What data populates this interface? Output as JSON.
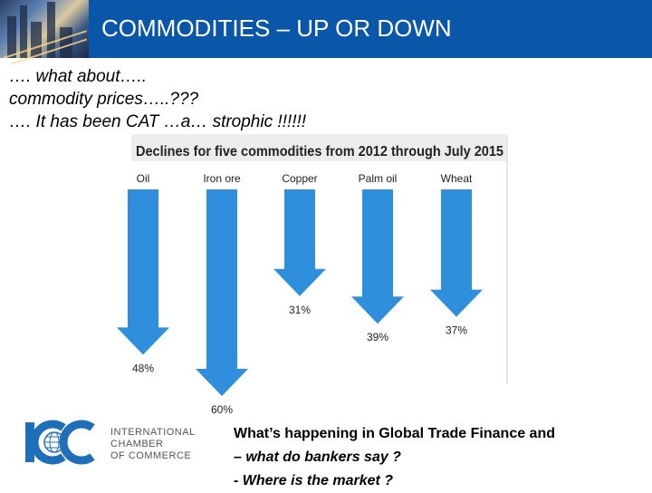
{
  "header": {
    "title": "COMMODITIES – UP OR DOWN"
  },
  "intro": {
    "lines": [
      "…. what about…..",
      " commodity prices…..???",
      "…. It has been  CAT …a… strophic !!!!!!"
    ]
  },
  "chart_data": {
    "type": "bar",
    "title": "Declines for five commodities from 2012 through July 2015",
    "categories": [
      "Oil",
      "Iron ore",
      "Copper",
      "Palm oil",
      "Wheat"
    ],
    "values": [
      48,
      60,
      31,
      39,
      37
    ],
    "value_labels": [
      "48%",
      "60%",
      "31%",
      "39%",
      "37%"
    ],
    "unit": "%",
    "orientation": "downward arrows",
    "colors": {
      "arrow": "#2f8fdc",
      "title_bar": "#ececec"
    }
  },
  "logo": {
    "mark": "ICC",
    "lines": [
      "INTERNATIONAL",
      "CHAMBER",
      "OF COMMERCE"
    ],
    "color": "#1f6fb8"
  },
  "footer": {
    "lines": [
      "What’s happening in Global Trade Finance and",
      " – what do bankers say ?",
      "- Where is the market ?"
    ]
  },
  "colors": {
    "header_bg": "#0a56a8",
    "header_text": "#ffffff"
  }
}
